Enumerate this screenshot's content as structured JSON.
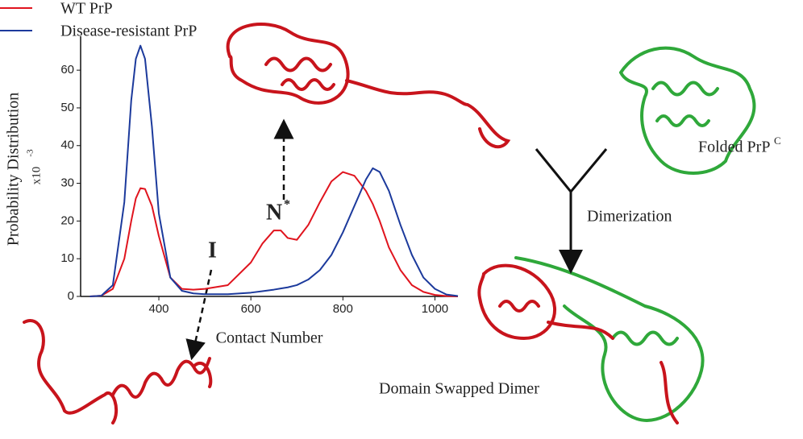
{
  "chart_data": {
    "type": "line",
    "x_label": "Contact Number",
    "y_label": "Probability Distribution",
    "y_scale_label": "x10",
    "y_scale_exponent": "-3",
    "x": [
      250,
      275,
      300,
      325,
      340,
      350,
      360,
      370,
      385,
      400,
      425,
      450,
      475,
      500,
      550,
      600,
      625,
      650,
      665,
      680,
      700,
      725,
      750,
      775,
      800,
      825,
      850,
      865,
      880,
      900,
      925,
      950,
      975,
      1000,
      1025,
      1050
    ],
    "series": [
      {
        "name": "WT PrP",
        "color": "#e0141e",
        "values": [
          0,
          0.2,
          2,
          10,
          20,
          26,
          28.7,
          28.5,
          24,
          16,
          5,
          2,
          1.8,
          2,
          3,
          9,
          14,
          17.5,
          17.5,
          15.5,
          15,
          19,
          25,
          30.5,
          33,
          32,
          28,
          24.5,
          20,
          13,
          7,
          3,
          1.2,
          0.4,
          0.1,
          0
        ]
      },
      {
        "name": "Disease-resistant PrP",
        "color": "#1c3a9c",
        "values": [
          0,
          0.2,
          3,
          25,
          52,
          63,
          66.5,
          63,
          45,
          22,
          5,
          1.5,
          0.8,
          0.6,
          0.6,
          1,
          1.4,
          1.8,
          2.1,
          2.4,
          3,
          4.5,
          7,
          11,
          17,
          24,
          31,
          34,
          33,
          28,
          19,
          11,
          5,
          2,
          0.5,
          0.1
        ]
      }
    ],
    "xlim": [
      230,
      1050
    ],
    "ylim": [
      0,
      69
    ],
    "xticks": [
      400,
      600,
      800,
      1000
    ],
    "yticks": [
      0,
      10,
      20,
      30,
      40,
      50,
      60
    ],
    "annotations": {
      "n_star": "N",
      "n_star_sup": "*",
      "intermediate": "I",
      "dimerization": "Dimerization",
      "folded": "Folded PrP",
      "folded_sup": "C",
      "dimer": "Domain Swapped Dimer"
    }
  }
}
